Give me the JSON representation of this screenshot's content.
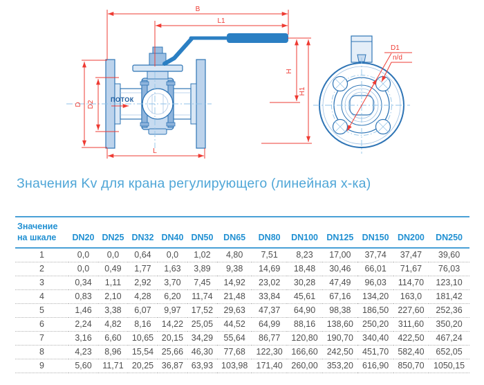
{
  "page": {
    "title": "Значения Kv для крана регулирующего (линейная х-ка)"
  },
  "colors": {
    "title_blue": "#4fa6d7",
    "header_blue": "#2190d2",
    "rule_blue": "#48a0d6",
    "drawing_stroke_blue": "#2e74b5",
    "drawing_fill_light": "#c7dbf0",
    "handle_blue": "#2b7fc3",
    "centerline_blue": "#8fc2e8",
    "dimension_red": "#ee3b33",
    "table_text_grey": "#4e4e4e"
  },
  "diagram": {
    "labels": {
      "dim_b": "B",
      "dim_l1": "L1",
      "dim_h": "H",
      "dim_h1": "H1",
      "dim_d": "D",
      "dim_d2": "D2",
      "dim_l": "L",
      "flow": "ПОТОК",
      "dim_d1": "D1",
      "dim_nd": "n/d"
    }
  },
  "table": {
    "scale_header_line1": "Значение",
    "scale_header_line2": "на шкале",
    "columns": [
      "DN20",
      "DN25",
      "DN32",
      "DN40",
      "DN50",
      "DN65",
      "DN80",
      "DN100",
      "DN125",
      "DN150",
      "DN200",
      "DN250"
    ],
    "rows": [
      {
        "scale": "1",
        "values": [
          "0,0",
          "0,0",
          "0,64",
          "0,0",
          "1,02",
          "4,80",
          "7,51",
          "8,23",
          "17,00",
          "37,74",
          "37,47",
          "39,60"
        ]
      },
      {
        "scale": "2",
        "values": [
          "0,0",
          "0,49",
          "1,77",
          "1,63",
          "3,89",
          "9,38",
          "14,69",
          "18,48",
          "30,46",
          "66,01",
          "71,67",
          "76,03"
        ]
      },
      {
        "scale": "3",
        "values": [
          "0,34",
          "1,11",
          "2,92",
          "3,70",
          "7,45",
          "14,92",
          "23,02",
          "30,28",
          "47,49",
          "96,03",
          "114,70",
          "123,10"
        ]
      },
      {
        "scale": "4",
        "values": [
          "0,83",
          "2,10",
          "4,28",
          "6,20",
          "11,74",
          "21,48",
          "33,84",
          "45,61",
          "67,16",
          "134,20",
          "163,0",
          "181,42"
        ]
      },
      {
        "scale": "5",
        "values": [
          "1,46",
          "3,38",
          "6,07",
          "9,97",
          "17,52",
          "29,63",
          "47,37",
          "64,90",
          "98,38",
          "186,50",
          "227,60",
          "252,36"
        ]
      },
      {
        "scale": "6",
        "values": [
          "2,24",
          "4,82",
          "8,16",
          "14,22",
          "25,05",
          "44,52",
          "64,99",
          "88,16",
          "138,60",
          "250,20",
          "311,60",
          "350,20"
        ]
      },
      {
        "scale": "7",
        "values": [
          "3,16",
          "6,60",
          "10,65",
          "20,15",
          "34,29",
          "55,64",
          "86,77",
          "120,80",
          "190,70",
          "340,40",
          "422,50",
          "467,24"
        ]
      },
      {
        "scale": "8",
        "values": [
          "4,23",
          "8,96",
          "15,54",
          "25,66",
          "46,30",
          "77,68",
          "122,30",
          "166,60",
          "242,50",
          "451,70",
          "582,40",
          "652,05"
        ]
      },
      {
        "scale": "9",
        "values": [
          "5,60",
          "11,71",
          "20,25",
          "36,87",
          "63,93",
          "103,98",
          "171,40",
          "260,00",
          "353,20",
          "616,90",
          "850,70",
          "1050,15"
        ]
      }
    ]
  }
}
